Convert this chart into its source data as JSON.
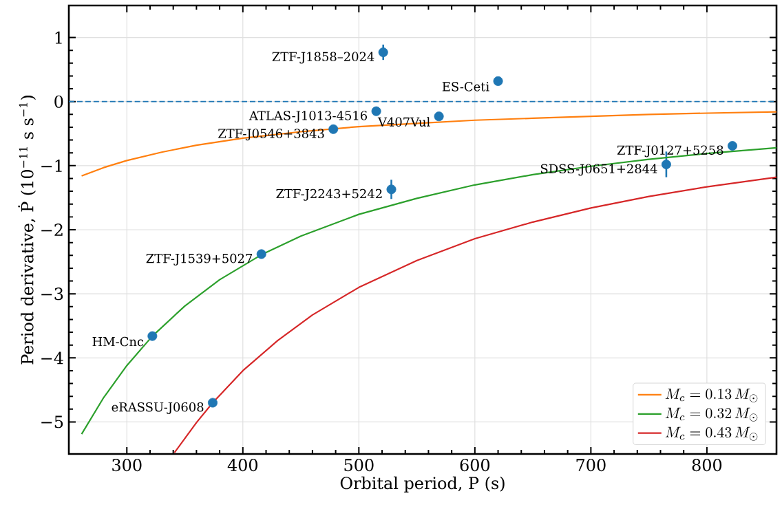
{
  "chart_data": {
    "type": "scatter",
    "xlabel": "Orbital period, P (s)",
    "ylabel": "Period derivative, Ṗ (10$^{−11}$ s s$^{−1}$)",
    "xlim": [
      250,
      860
    ],
    "ylim": [
      -5.5,
      1.5
    ],
    "xticks": [
      300,
      400,
      500,
      600,
      700,
      800
    ],
    "yticks": [
      {
        "value": -5,
        "label": "−5"
      },
      {
        "value": -4,
        "label": "−4"
      },
      {
        "value": -3,
        "label": "−3"
      },
      {
        "value": -2,
        "label": "−2"
      },
      {
        "value": -1,
        "label": "−1"
      },
      0,
      1
    ],
    "grid": true,
    "legend": "bottom right",
    "series": [
      {
        "color": "#1f77b4",
        "marker": "circle",
        "x": [
          521,
          620,
          515,
          569,
          478,
          528,
          822,
          765,
          416,
          322,
          374
        ],
        "values": [
          0.77,
          0.32,
          -0.15,
          -0.23,
          -0.43,
          -1.37,
          -0.69,
          -0.98,
          -2.38,
          -3.66,
          -4.7
        ],
        "errors": [
          0.12,
          null,
          null,
          null,
          null,
          0.15,
          null,
          0.2,
          null,
          null,
          null
        ]
      },
      {
        "type": "line",
        "name": "M_{c}=0.13\\,M_{\\odot}",
        "color": "#ff7f0e",
        "marker": "none",
        "x": [
          261,
          280,
          300,
          330,
          360,
          400,
          450,
          500,
          550,
          600,
          650,
          700,
          750,
          800,
          860
        ],
        "values": [
          -1.16,
          -1.03,
          -0.92,
          -0.79,
          -0.68,
          -0.57,
          -0.47,
          -0.39,
          -0.34,
          -0.29,
          -0.26,
          -0.23,
          -0.2,
          -0.18,
          -0.16
        ]
      },
      {
        "type": "line",
        "name": "M_{c}=0.32\\,M_{\\odot}",
        "color": "#2ca02c",
        "marker": "none",
        "x": [
          261,
          280,
          300,
          322,
          350,
          380,
          416,
          450,
          500,
          550,
          600,
          650,
          700,
          750,
          800,
          860
        ],
        "values": [
          -5.19,
          -4.62,
          -4.12,
          -3.66,
          -3.19,
          -2.78,
          -2.39,
          -2.1,
          -1.76,
          -1.51,
          -1.3,
          -1.14,
          -1.01,
          -0.9,
          -0.81,
          -0.72
        ]
      },
      {
        "type": "line",
        "name": "M_{c}=0.43\\,M_{\\odot}",
        "color": "#d62728",
        "marker": "none",
        "x": [
          341,
          360,
          374,
          400,
          430,
          460,
          500,
          550,
          600,
          650,
          700,
          750,
          800,
          860
        ],
        "values": [
          -5.48,
          -5.01,
          -4.7,
          -4.2,
          -3.73,
          -3.33,
          -2.9,
          -2.48,
          -2.14,
          -1.88,
          -1.66,
          -1.48,
          -1.33,
          -1.18
        ]
      }
    ],
    "ref_lines": [
      {
        "axis": "y",
        "value": 0,
        "color": "#1f77b4",
        "line_style": "dashed"
      }
    ],
    "annotations": [
      {
        "text": "ZTF-J1858–2024",
        "x": 521,
        "y": 0.77
      },
      {
        "text": "ES-Ceti",
        "x": 620,
        "y": 0.32
      },
      {
        "text": "ATLAS-J1013-4516",
        "x": 515,
        "y": -0.15
      },
      {
        "text": "V407Vul",
        "x": 569,
        "y": -0.23
      },
      {
        "text": "ZTF-J0546+3843",
        "x": 478,
        "y": -0.43
      },
      {
        "text": "ZTF-J2243+5242",
        "x": 528,
        "y": -1.37
      },
      {
        "text": "ZTF-J0127+5258",
        "x": 822,
        "y": -0.69
      },
      {
        "text": "SDSS-J0651+2844",
        "x": 765,
        "y": -0.98
      },
      {
        "text": "ZTF-J1539+5027",
        "x": 416,
        "y": -2.38
      },
      {
        "text": "HM-Cnc",
        "x": 322,
        "y": -3.66
      },
      {
        "text": "eRASSU-J0608",
        "x": 374,
        "y": -4.7
      }
    ]
  }
}
